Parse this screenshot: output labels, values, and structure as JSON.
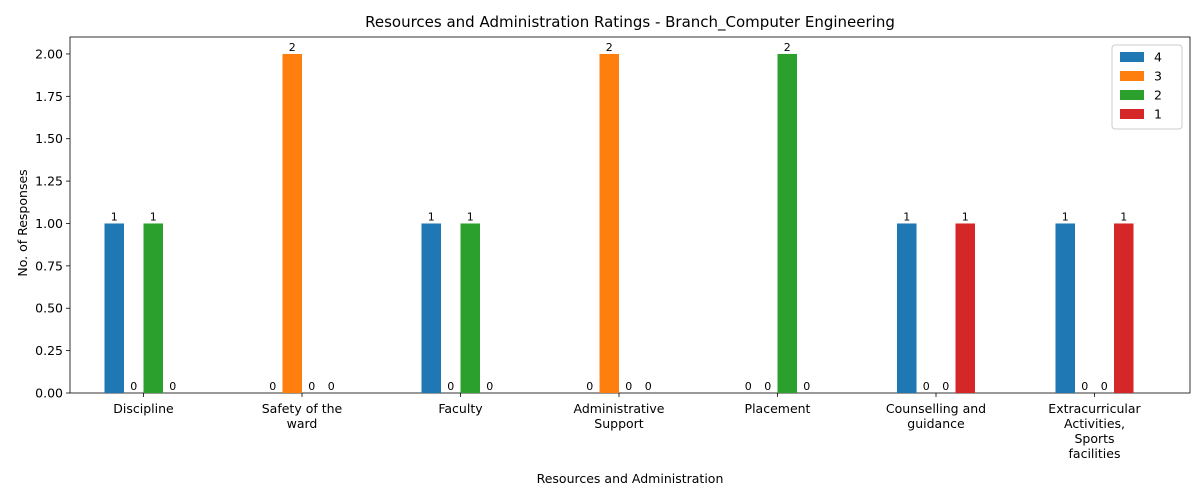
{
  "chart_data": {
    "type": "bar",
    "title": "Resources and Administration Ratings - Branch_Computer Engineering",
    "xlabel": "Resources and Administration",
    "ylabel": "No. of Responses",
    "categories": [
      [
        "Discipline"
      ],
      [
        "Safety of the",
        "ward"
      ],
      [
        "Faculty"
      ],
      [
        "Administrative",
        "Support"
      ],
      [
        "Placement"
      ],
      [
        "Counselling and",
        "guidance"
      ],
      [
        "Extracurricular",
        "Activities,",
        "Sports",
        "facilities"
      ]
    ],
    "series": [
      {
        "name": "4",
        "color": "#1f77b4",
        "values": [
          1,
          0,
          1,
          0,
          0,
          1,
          1
        ]
      },
      {
        "name": "3",
        "color": "#ff7f0e",
        "values": [
          0,
          2,
          0,
          2,
          0,
          0,
          0
        ]
      },
      {
        "name": "2",
        "color": "#2ca02c",
        "values": [
          1,
          0,
          1,
          0,
          2,
          0,
          0
        ]
      },
      {
        "name": "1",
        "color": "#d62728",
        "values": [
          0,
          0,
          0,
          0,
          0,
          1,
          1
        ]
      }
    ],
    "ylim": [
      0,
      2.1
    ],
    "yticks": [
      "0.00",
      "0.25",
      "0.50",
      "0.75",
      "1.00",
      "1.25",
      "1.50",
      "1.75",
      "2.00"
    ],
    "grid": false,
    "legend_position": "top-right"
  }
}
